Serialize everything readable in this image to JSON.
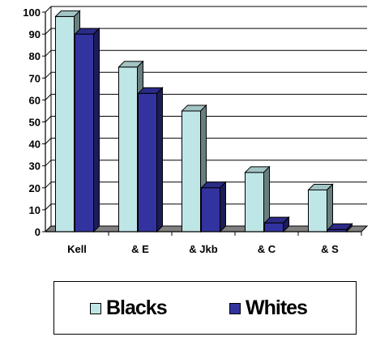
{
  "chart_data": {
    "type": "bar",
    "categories": [
      "Kell",
      "& E",
      "& Jkb",
      "& C",
      "& S"
    ],
    "series": [
      {
        "name": "Blacks",
        "values": [
          98,
          75,
          55,
          27,
          19
        ],
        "color": "#bfe6e6"
      },
      {
        "name": "Whites",
        "values": [
          90,
          63,
          20,
          4,
          1
        ],
        "color": "#3333a0"
      }
    ],
    "yticks": [
      "0",
      "10",
      "20",
      "30",
      "40",
      "50",
      "60",
      "70",
      "80",
      "90",
      "100"
    ],
    "ylim": [
      0,
      100
    ],
    "grid": true,
    "legend_position": "bottom",
    "style": "3d-bar"
  }
}
